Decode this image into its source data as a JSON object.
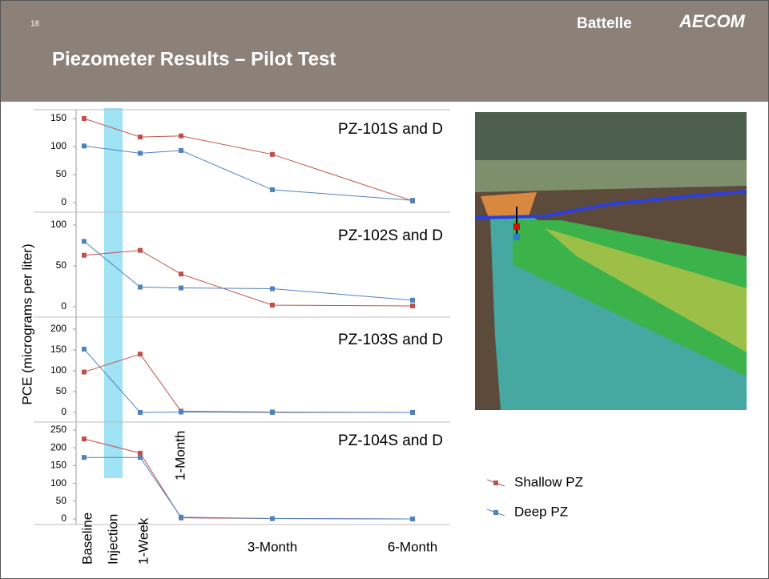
{
  "slide_number": "18",
  "logos": [
    "Battelle",
    "AECOM"
  ],
  "title": "Piezometer Results – Pilot Test",
  "y_axis_label": "PCE (micrograms per liter)",
  "injection_label": "Injection",
  "chart_data": [
    {
      "type": "line",
      "title": "PZ-101S and D",
      "ylim": [
        0,
        150
      ],
      "yticks": [
        0,
        50,
        100,
        150
      ],
      "series": [
        {
          "color": "#c0504d",
          "values": [
            150,
            117,
            119,
            86,
            3
          ]
        },
        {
          "color": "#4f81bd",
          "values": [
            101,
            88,
            93,
            23,
            4
          ]
        }
      ]
    },
    {
      "type": "line",
      "title": "PZ-102S and D",
      "ylim": [
        0,
        100
      ],
      "yticks": [
        0,
        50,
        100
      ],
      "series": [
        {
          "color": "#c0504d",
          "values": [
            63,
            69,
            40,
            2,
            1
          ]
        },
        {
          "color": "#4f81bd",
          "values": [
            80,
            24,
            23,
            22,
            8
          ]
        }
      ]
    },
    {
      "type": "line",
      "title": "PZ-103S and D",
      "ylim": [
        0,
        200
      ],
      "yticks": [
        0,
        50,
        100,
        150,
        200
      ],
      "series": [
        {
          "color": "#c0504d",
          "values": [
            97,
            140,
            3,
            1,
            0
          ]
        },
        {
          "color": "#4f81bd",
          "values": [
            152,
            0,
            1,
            0,
            0
          ]
        }
      ]
    },
    {
      "type": "line",
      "title": "PZ-104S and D",
      "ylim": [
        0,
        250
      ],
      "yticks": [
        0,
        50,
        100,
        150,
        200,
        250
      ],
      "categories": [
        "Baseline",
        "1-Week",
        "1-Month",
        "3-Month",
        "6-Month"
      ],
      "series": [
        {
          "name": "Shallow PZ",
          "color": "#c0504d",
          "values": [
            225,
            185,
            3,
            1,
            0
          ]
        },
        {
          "name": "Deep PZ",
          "color": "#4f81bd",
          "values": [
            173,
            173,
            5,
            1,
            0
          ]
        }
      ]
    }
  ]
}
